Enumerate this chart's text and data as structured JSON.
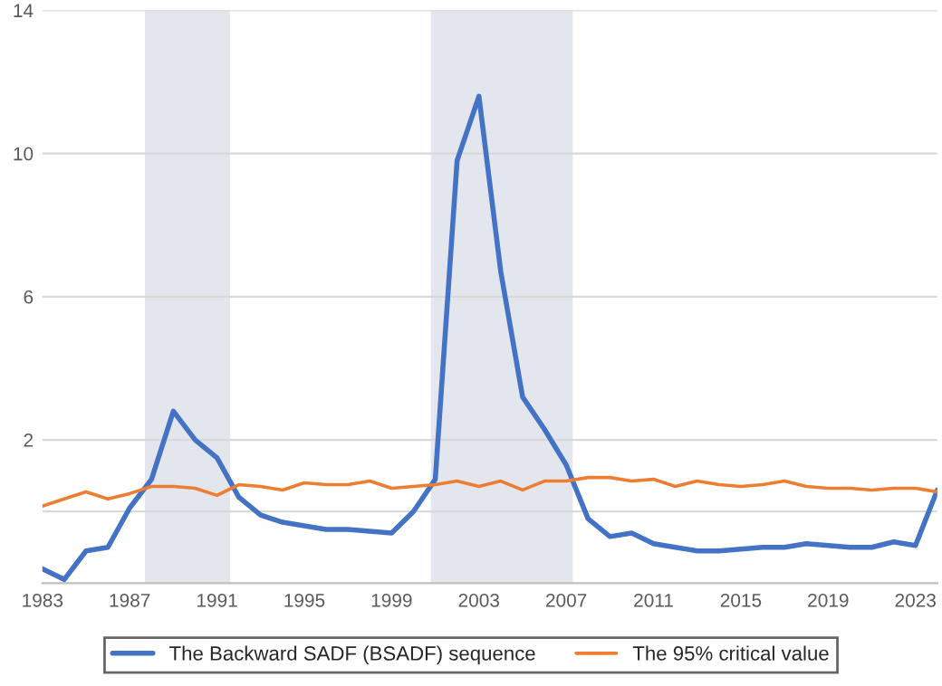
{
  "chart_data": {
    "type": "line",
    "x": [
      1983,
      1984,
      1985,
      1986,
      1987,
      1988,
      1989,
      1990,
      1991,
      1992,
      1993,
      1994,
      1995,
      1996,
      1997,
      1998,
      1999,
      2000,
      2001,
      2002,
      2003,
      2004,
      2005,
      2006,
      2007,
      2008,
      2009,
      2010,
      2011,
      2012,
      2013,
      2014,
      2015,
      2016,
      2017,
      2018,
      2019,
      2020,
      2021,
      2022,
      2023,
      2024
    ],
    "series": [
      {
        "name": "The Backward SADF (BSADF) sequence",
        "color": "#4472c4",
        "values": [
          -1.6,
          -1.9,
          -1.1,
          -1.0,
          0.1,
          0.9,
          2.8,
          2.0,
          1.5,
          0.4,
          -0.1,
          -0.3,
          -0.4,
          -0.5,
          -0.5,
          -0.55,
          -0.6,
          0.0,
          0.9,
          9.8,
          11.6,
          6.7,
          3.2,
          2.3,
          1.3,
          -0.2,
          -0.7,
          -0.6,
          -0.9,
          -1.0,
          -1.1,
          -1.1,
          -1.05,
          -1.0,
          -1.0,
          -0.9,
          -0.95,
          -1.0,
          -1.0,
          -0.85,
          -0.95,
          0.6
        ]
      },
      {
        "name": "The 95% critical value",
        "color": "#ed7d31",
        "values": [
          0.15,
          0.35,
          0.55,
          0.35,
          0.5,
          0.7,
          0.7,
          0.65,
          0.45,
          0.75,
          0.7,
          0.6,
          0.8,
          0.75,
          0.75,
          0.85,
          0.65,
          0.7,
          0.75,
          0.85,
          0.7,
          0.85,
          0.6,
          0.85,
          0.85,
          0.95,
          0.95,
          0.85,
          0.9,
          0.7,
          0.85,
          0.75,
          0.7,
          0.75,
          0.85,
          0.7,
          0.65,
          0.65,
          0.6,
          0.65,
          0.65,
          0.55
        ]
      }
    ],
    "bands": [
      {
        "axis": "x",
        "from": 1987.7,
        "to": 1991.6,
        "color": "#e3e6ed"
      },
      {
        "axis": "x",
        "from": 2000.8,
        "to": 2007.3,
        "color": "#e3e6ed"
      }
    ],
    "xlim": [
      1983,
      2024
    ],
    "xticks": [
      1983,
      1987,
      1991,
      1995,
      1999,
      2003,
      2007,
      2011,
      2015,
      2019,
      2023
    ],
    "ylim": [
      -2,
      14
    ],
    "yticks": [
      {
        "value": 0,
        "label": null
      },
      2,
      6,
      10,
      14
    ],
    "grid": "y",
    "legend": "bottom",
    "marker": "none",
    "line_style": "solid"
  }
}
